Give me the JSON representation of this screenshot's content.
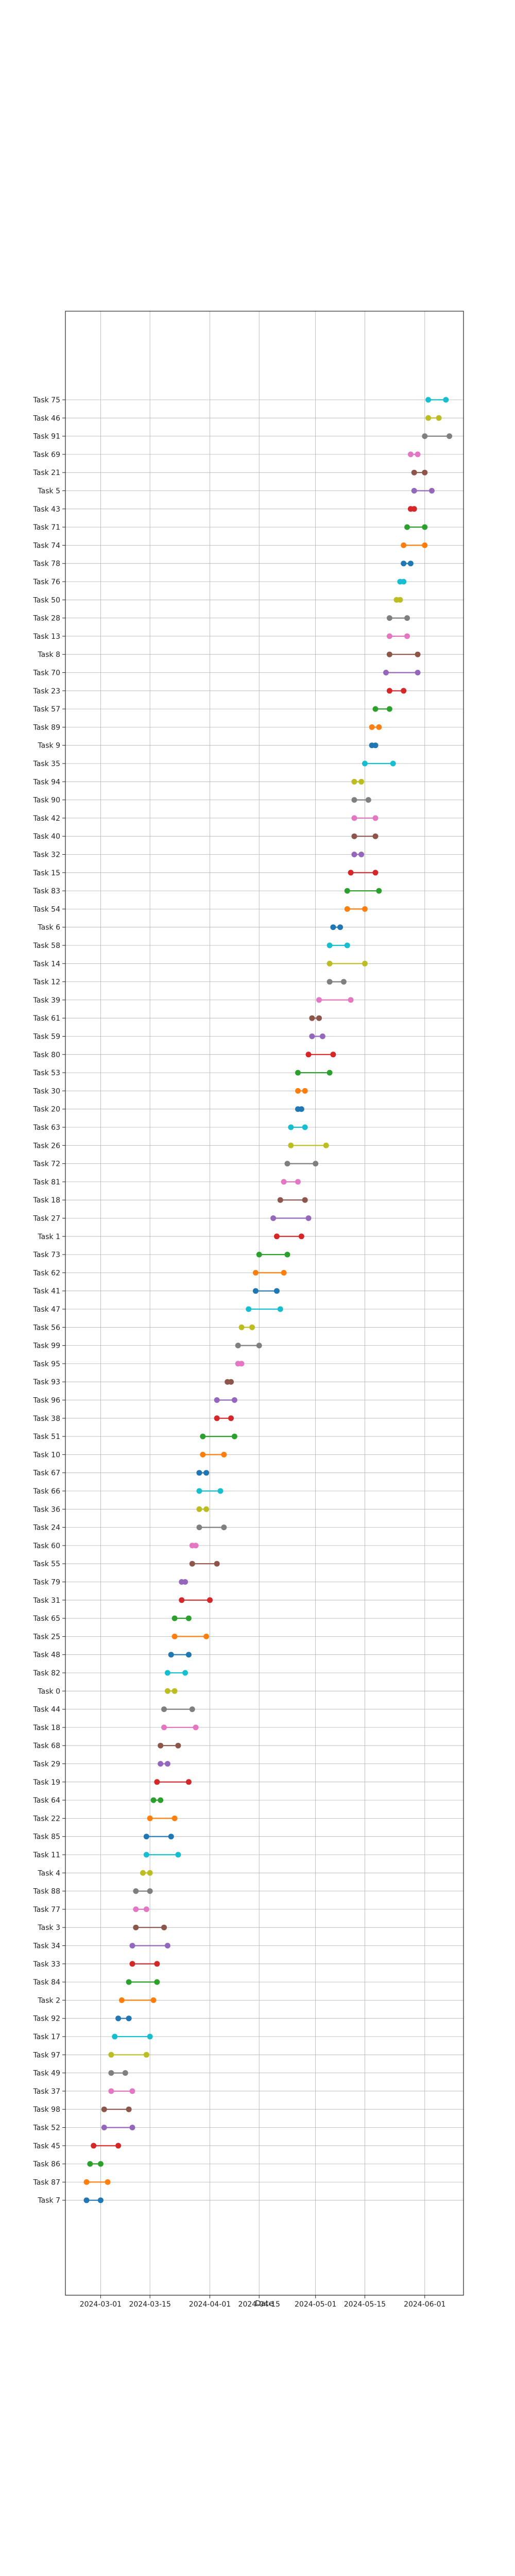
{
  "chart_data": {
    "type": "dumbbell",
    "title": "",
    "xlabel": "Date",
    "ylabel": "",
    "grid": true,
    "x_ticks": [
      "2024-03-01",
      "2024-03-15",
      "2024-04-01",
      "2024-04-15",
      "2024-05-01",
      "2024-05-15",
      "2024-06-01"
    ],
    "xlim": [
      "2024-02-20",
      "2024-06-12"
    ],
    "series": [
      {
        "name": "Task 75",
        "start": "2024-06-02",
        "end": "2024-06-07",
        "color": "#17becf"
      },
      {
        "name": "Task 46",
        "start": "2024-06-02",
        "end": "2024-06-05",
        "color": "#bcbd22"
      },
      {
        "name": "Task 91",
        "start": "2024-06-01",
        "end": "2024-06-08",
        "color": "#7f7f7f"
      },
      {
        "name": "Task 69",
        "start": "2024-05-28",
        "end": "2024-05-30",
        "color": "#e377c2"
      },
      {
        "name": "Task 21",
        "start": "2024-05-29",
        "end": "2024-06-01",
        "color": "#8c564b"
      },
      {
        "name": "Task 5",
        "start": "2024-05-29",
        "end": "2024-06-03",
        "color": "#9467bd"
      },
      {
        "name": "Task 43",
        "start": "2024-05-28",
        "end": "2024-05-29",
        "color": "#d62728"
      },
      {
        "name": "Task 71",
        "start": "2024-05-27",
        "end": "2024-06-01",
        "color": "#2ca02c"
      },
      {
        "name": "Task 74",
        "start": "2024-05-26",
        "end": "2024-06-01",
        "color": "#ff7f0e"
      },
      {
        "name": "Task 78",
        "start": "2024-05-26",
        "end": "2024-05-28",
        "color": "#1f77b4"
      },
      {
        "name": "Task 76",
        "start": "2024-05-25",
        "end": "2024-05-26",
        "color": "#17becf"
      },
      {
        "name": "Task 50",
        "start": "2024-05-24",
        "end": "2024-05-25",
        "color": "#bcbd22"
      },
      {
        "name": "Task 28",
        "start": "2024-05-22",
        "end": "2024-05-27",
        "color": "#7f7f7f"
      },
      {
        "name": "Task 13",
        "start": "2024-05-22",
        "end": "2024-05-27",
        "color": "#e377c2"
      },
      {
        "name": "Task 8",
        "start": "2024-05-22",
        "end": "2024-05-30",
        "color": "#8c564b"
      },
      {
        "name": "Task 70",
        "start": "2024-05-21",
        "end": "2024-05-30",
        "color": "#9467bd"
      },
      {
        "name": "Task 23",
        "start": "2024-05-22",
        "end": "2024-05-26",
        "color": "#d62728"
      },
      {
        "name": "Task 57",
        "start": "2024-05-18",
        "end": "2024-05-22",
        "color": "#2ca02c"
      },
      {
        "name": "Task 89",
        "start": "2024-05-17",
        "end": "2024-05-19",
        "color": "#ff7f0e"
      },
      {
        "name": "Task 9",
        "start": "2024-05-17",
        "end": "2024-05-18",
        "color": "#1f77b4"
      },
      {
        "name": "Task 35",
        "start": "2024-05-15",
        "end": "2024-05-23",
        "color": "#17becf"
      },
      {
        "name": "Task 94",
        "start": "2024-05-12",
        "end": "2024-05-14",
        "color": "#bcbd22"
      },
      {
        "name": "Task 90",
        "start": "2024-05-12",
        "end": "2024-05-16",
        "color": "#7f7f7f"
      },
      {
        "name": "Task 42",
        "start": "2024-05-12",
        "end": "2024-05-18",
        "color": "#e377c2"
      },
      {
        "name": "Task 40",
        "start": "2024-05-12",
        "end": "2024-05-18",
        "color": "#8c564b"
      },
      {
        "name": "Task 32",
        "start": "2024-05-12",
        "end": "2024-05-14",
        "color": "#9467bd"
      },
      {
        "name": "Task 15",
        "start": "2024-05-11",
        "end": "2024-05-18",
        "color": "#d62728"
      },
      {
        "name": "Task 83",
        "start": "2024-05-10",
        "end": "2024-05-19",
        "color": "#2ca02c"
      },
      {
        "name": "Task 54",
        "start": "2024-05-10",
        "end": "2024-05-15",
        "color": "#ff7f0e"
      },
      {
        "name": "Task 6",
        "start": "2024-05-06",
        "end": "2024-05-08",
        "color": "#1f77b4"
      },
      {
        "name": "Task 58",
        "start": "2024-05-05",
        "end": "2024-05-10",
        "color": "#17becf"
      },
      {
        "name": "Task 14",
        "start": "2024-05-05",
        "end": "2024-05-15",
        "color": "#bcbd22"
      },
      {
        "name": "Task 12",
        "start": "2024-05-05",
        "end": "2024-05-09",
        "color": "#7f7f7f"
      },
      {
        "name": "Task 39",
        "start": "2024-05-02",
        "end": "2024-05-11",
        "color": "#e377c2"
      },
      {
        "name": "Task 61",
        "start": "2024-04-30",
        "end": "2024-05-02",
        "color": "#8c564b"
      },
      {
        "name": "Task 59",
        "start": "2024-04-30",
        "end": "2024-05-03",
        "color": "#9467bd"
      },
      {
        "name": "Task 80",
        "start": "2024-04-29",
        "end": "2024-05-06",
        "color": "#d62728"
      },
      {
        "name": "Task 53",
        "start": "2024-04-26",
        "end": "2024-05-05",
        "color": "#2ca02c"
      },
      {
        "name": "Task 30",
        "start": "2024-04-26",
        "end": "2024-04-28",
        "color": "#ff7f0e"
      },
      {
        "name": "Task 20",
        "start": "2024-04-26",
        "end": "2024-04-27",
        "color": "#1f77b4"
      },
      {
        "name": "Task 63",
        "start": "2024-04-24",
        "end": "2024-04-28",
        "color": "#17becf"
      },
      {
        "name": "Task 26",
        "start": "2024-04-24",
        "end": "2024-05-04",
        "color": "#bcbd22"
      },
      {
        "name": "Task 72",
        "start": "2024-04-23",
        "end": "2024-05-01",
        "color": "#7f7f7f"
      },
      {
        "name": "Task 81",
        "start": "2024-04-22",
        "end": "2024-04-26",
        "color": "#e377c2"
      },
      {
        "name": "Task 18",
        "start": "2024-04-21",
        "end": "2024-04-28",
        "color": "#8c564b"
      },
      {
        "name": "Task 27",
        "start": "2024-04-19",
        "end": "2024-04-29",
        "color": "#9467bd"
      },
      {
        "name": "Task 1",
        "start": "2024-04-20",
        "end": "2024-04-27",
        "color": "#d62728"
      },
      {
        "name": "Task 73",
        "start": "2024-04-15",
        "end": "2024-04-23",
        "color": "#2ca02c"
      },
      {
        "name": "Task 62",
        "start": "2024-04-14",
        "end": "2024-04-22",
        "color": "#ff7f0e"
      },
      {
        "name": "Task 41",
        "start": "2024-04-14",
        "end": "2024-04-20",
        "color": "#1f77b4"
      },
      {
        "name": "Task 47",
        "start": "2024-04-12",
        "end": "2024-04-21",
        "color": "#17becf"
      },
      {
        "name": "Task 56",
        "start": "2024-04-10",
        "end": "2024-04-13",
        "color": "#bcbd22"
      },
      {
        "name": "Task 99",
        "start": "2024-04-09",
        "end": "2024-04-15",
        "color": "#7f7f7f"
      },
      {
        "name": "Task 95",
        "start": "2024-04-09",
        "end": "2024-04-10",
        "color": "#e377c2"
      },
      {
        "name": "Task 93",
        "start": "2024-04-06",
        "end": "2024-04-07",
        "color": "#8c564b"
      },
      {
        "name": "Task 96",
        "start": "2024-04-03",
        "end": "2024-04-08",
        "color": "#9467bd"
      },
      {
        "name": "Task 38",
        "start": "2024-04-03",
        "end": "2024-04-07",
        "color": "#d62728"
      },
      {
        "name": "Task 51",
        "start": "2024-03-30",
        "end": "2024-04-08",
        "color": "#2ca02c"
      },
      {
        "name": "Task 10",
        "start": "2024-03-30",
        "end": "2024-04-05",
        "color": "#ff7f0e"
      },
      {
        "name": "Task 67",
        "start": "2024-03-29",
        "end": "2024-03-31",
        "color": "#1f77b4"
      },
      {
        "name": "Task 66",
        "start": "2024-03-29",
        "end": "2024-04-04",
        "color": "#17becf"
      },
      {
        "name": "Task 36",
        "start": "2024-03-29",
        "end": "2024-03-31",
        "color": "#bcbd22"
      },
      {
        "name": "Task 24",
        "start": "2024-03-29",
        "end": "2024-04-05",
        "color": "#7f7f7f"
      },
      {
        "name": "Task 60",
        "start": "2024-03-27",
        "end": "2024-03-28",
        "color": "#e377c2"
      },
      {
        "name": "Task 55",
        "start": "2024-03-27",
        "end": "2024-04-03",
        "color": "#8c564b"
      },
      {
        "name": "Task 79",
        "start": "2024-03-24",
        "end": "2024-03-25",
        "color": "#9467bd"
      },
      {
        "name": "Task 31",
        "start": "2024-03-24",
        "end": "2024-04-01",
        "color": "#d62728"
      },
      {
        "name": "Task 65",
        "start": "2024-03-22",
        "end": "2024-03-26",
        "color": "#2ca02c"
      },
      {
        "name": "Task 25",
        "start": "2024-03-22",
        "end": "2024-03-31",
        "color": "#ff7f0e"
      },
      {
        "name": "Task 48",
        "start": "2024-03-21",
        "end": "2024-03-26",
        "color": "#1f77b4"
      },
      {
        "name": "Task 82",
        "start": "2024-03-20",
        "end": "2024-03-25",
        "color": "#17becf"
      },
      {
        "name": "Task 0",
        "start": "2024-03-20",
        "end": "2024-03-22",
        "color": "#bcbd22"
      },
      {
        "name": "Task 44",
        "start": "2024-03-19",
        "end": "2024-03-27",
        "color": "#7f7f7f"
      },
      {
        "name": "Task 18",
        "start": "2024-03-19",
        "end": "2024-03-28",
        "color": "#e377c2"
      },
      {
        "name": "Task 68",
        "start": "2024-03-18",
        "end": "2024-03-23",
        "color": "#8c564b"
      },
      {
        "name": "Task 29",
        "start": "2024-03-18",
        "end": "2024-03-20",
        "color": "#9467bd"
      },
      {
        "name": "Task 19",
        "start": "2024-03-17",
        "end": "2024-03-26",
        "color": "#d62728"
      },
      {
        "name": "Task 64",
        "start": "2024-03-16",
        "end": "2024-03-18",
        "color": "#2ca02c"
      },
      {
        "name": "Task 22",
        "start": "2024-03-15",
        "end": "2024-03-22",
        "color": "#ff7f0e"
      },
      {
        "name": "Task 85",
        "start": "2024-03-14",
        "end": "2024-03-21",
        "color": "#1f77b4"
      },
      {
        "name": "Task 11",
        "start": "2024-03-14",
        "end": "2024-03-23",
        "color": "#17becf"
      },
      {
        "name": "Task 4",
        "start": "2024-03-13",
        "end": "2024-03-15",
        "color": "#bcbd22"
      },
      {
        "name": "Task 88",
        "start": "2024-03-11",
        "end": "2024-03-15",
        "color": "#7f7f7f"
      },
      {
        "name": "Task 77",
        "start": "2024-03-11",
        "end": "2024-03-14",
        "color": "#e377c2"
      },
      {
        "name": "Task 3",
        "start": "2024-03-11",
        "end": "2024-03-19",
        "color": "#8c564b"
      },
      {
        "name": "Task 34",
        "start": "2024-03-10",
        "end": "2024-03-20",
        "color": "#9467bd"
      },
      {
        "name": "Task 33",
        "start": "2024-03-10",
        "end": "2024-03-17",
        "color": "#d62728"
      },
      {
        "name": "Task 84",
        "start": "2024-03-09",
        "end": "2024-03-17",
        "color": "#2ca02c"
      },
      {
        "name": "Task 2",
        "start": "2024-03-07",
        "end": "2024-03-16",
        "color": "#ff7f0e"
      },
      {
        "name": "Task 92",
        "start": "2024-03-06",
        "end": "2024-03-09",
        "color": "#1f77b4"
      },
      {
        "name": "Task 17",
        "start": "2024-03-05",
        "end": "2024-03-15",
        "color": "#17becf"
      },
      {
        "name": "Task 97",
        "start": "2024-03-04",
        "end": "2024-03-14",
        "color": "#bcbd22"
      },
      {
        "name": "Task 49",
        "start": "2024-03-04",
        "end": "2024-03-08",
        "color": "#7f7f7f"
      },
      {
        "name": "Task 37",
        "start": "2024-03-04",
        "end": "2024-03-10",
        "color": "#e377c2"
      },
      {
        "name": "Task 98",
        "start": "2024-03-02",
        "end": "2024-03-09",
        "color": "#8c564b"
      },
      {
        "name": "Task 52",
        "start": "2024-03-02",
        "end": "2024-03-10",
        "color": "#9467bd"
      },
      {
        "name": "Task 45",
        "start": "2024-02-28",
        "end": "2024-03-06",
        "color": "#d62728"
      },
      {
        "name": "Task 86",
        "start": "2024-02-27",
        "end": "2024-03-01",
        "color": "#2ca02c"
      },
      {
        "name": "Task 87",
        "start": "2024-02-26",
        "end": "2024-03-03",
        "color": "#ff7f0e"
      },
      {
        "name": "Task 7",
        "start": "2024-02-26",
        "end": "2024-03-01",
        "color": "#1f77b4"
      }
    ]
  }
}
